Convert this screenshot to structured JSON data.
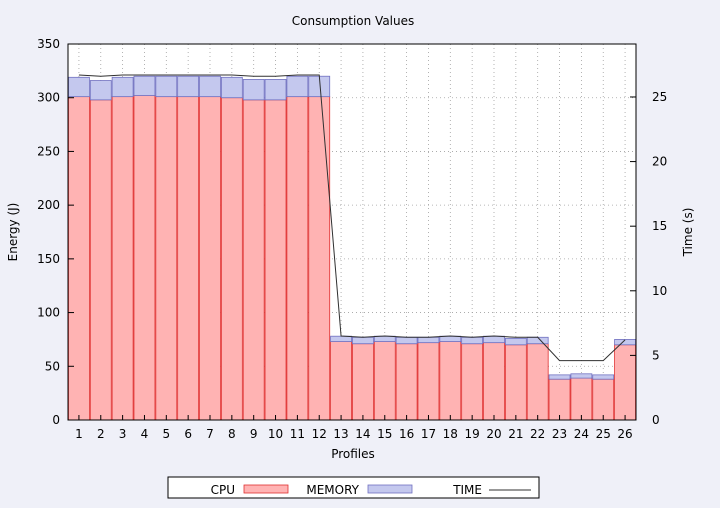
{
  "chart_data": {
    "type": "bar",
    "title": "Consumption Values",
    "xlabel": "Profiles",
    "ylabel": "Energy (J)",
    "y2label": "Time (s)",
    "categories": [
      "1",
      "2",
      "3",
      "4",
      "5",
      "6",
      "7",
      "8",
      "9",
      "10",
      "11",
      "12",
      "13",
      "14",
      "15",
      "16",
      "17",
      "18",
      "19",
      "20",
      "21",
      "22",
      "23",
      "24",
      "25",
      "26"
    ],
    "stacked": true,
    "ylim": [
      0,
      350
    ],
    "yticks": [
      0,
      50,
      100,
      150,
      200,
      250,
      300,
      350
    ],
    "y2lim": [
      0,
      29.1
    ],
    "y2ticks": [
      0,
      5,
      10,
      15,
      20,
      25
    ],
    "grid": true,
    "legend_position": "bottom",
    "series": [
      {
        "name": "CPU",
        "kind": "bar",
        "axis": "left",
        "color": "#ffb3b3",
        "stroke": "#e03030",
        "values": [
          301,
          298,
          301,
          302,
          301,
          301,
          301,
          300,
          298,
          298,
          301,
          301,
          73,
          71,
          73,
          71,
          72,
          73,
          71,
          72,
          70,
          71,
          38,
          39,
          38,
          70
        ]
      },
      {
        "name": "MEMORY",
        "kind": "bar",
        "axis": "left",
        "color": "#c4c8ee",
        "stroke": "#7070c0",
        "values": [
          18,
          18,
          18,
          18,
          19,
          19,
          19,
          19,
          19,
          19,
          19,
          19,
          5,
          6,
          5,
          6,
          5,
          5,
          6,
          6,
          6,
          6,
          4,
          4,
          4,
          5
        ]
      },
      {
        "name": "TIME",
        "kind": "line",
        "axis": "right",
        "color": "#303030",
        "values": [
          26.7,
          26.6,
          26.7,
          26.7,
          26.7,
          26.7,
          26.7,
          26.7,
          26.6,
          26.6,
          26.7,
          26.7,
          6.5,
          6.4,
          6.5,
          6.4,
          6.4,
          6.5,
          6.4,
          6.5,
          6.4,
          6.4,
          4.6,
          4.6,
          4.6,
          6.2
        ]
      }
    ]
  }
}
